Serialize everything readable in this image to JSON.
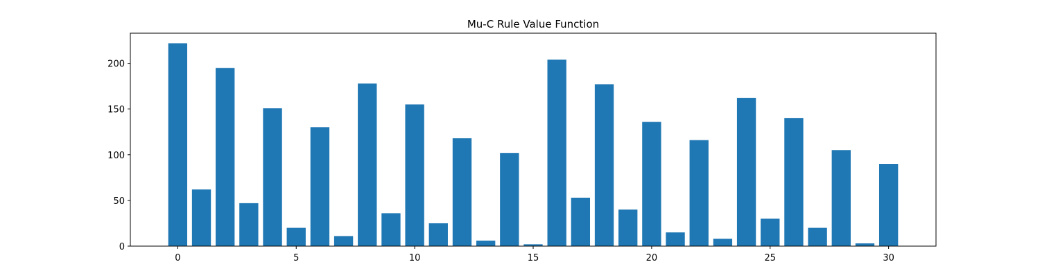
{
  "chart_data": {
    "type": "bar",
    "title": "Mu-C Rule Value Function",
    "xlabel": "",
    "ylabel": "",
    "x": [
      0,
      1,
      2,
      3,
      4,
      5,
      6,
      7,
      8,
      9,
      10,
      11,
      12,
      13,
      14,
      15,
      16,
      17,
      18,
      19,
      20,
      21,
      22,
      23,
      24,
      25,
      26,
      27,
      28,
      29,
      30
    ],
    "values": [
      222,
      62,
      195,
      47,
      151,
      20,
      130,
      11,
      178,
      36,
      155,
      25,
      118,
      6,
      102,
      2,
      204,
      53,
      177,
      40,
      136,
      15,
      116,
      8,
      162,
      30,
      140,
      20,
      105,
      3,
      90
    ],
    "xlim": [
      -2,
      32
    ],
    "ylim": [
      0,
      233
    ],
    "xticks": [
      0,
      5,
      10,
      15,
      20,
      25,
      30
    ],
    "yticks": [
      0,
      50,
      100,
      150,
      200
    ],
    "xtick_labels": [
      "0",
      "5",
      "10",
      "15",
      "20",
      "25",
      "30"
    ],
    "ytick_labels": [
      "0",
      "50",
      "100",
      "150",
      "200"
    ],
    "bar_color": "#1f77b4",
    "grid": false,
    "legend": "none"
  }
}
